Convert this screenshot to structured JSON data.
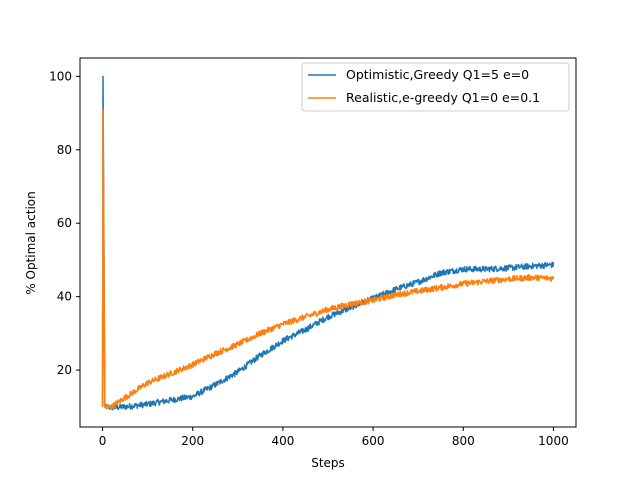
{
  "chart_data": {
    "type": "line",
    "title": "",
    "xlabel": "Steps",
    "ylabel": "% Optimal action",
    "xlim": [
      -50,
      1050
    ],
    "ylim": [
      4.5,
      105
    ],
    "xticks": [
      0,
      200,
      400,
      600,
      800,
      1000
    ],
    "yticks": [
      20,
      40,
      60,
      80,
      100
    ],
    "grid": false,
    "legend_position": "top-right",
    "series": [
      {
        "name": "Optimistic,Greedy Q1=5 e=0",
        "color": "#1f77b4",
        "x": [
          0,
          1,
          5,
          20,
          50,
          100,
          150,
          200,
          250,
          300,
          350,
          400,
          450,
          500,
          550,
          600,
          650,
          700,
          750,
          800,
          850,
          900,
          950,
          1000
        ],
        "y": [
          10,
          100,
          10,
          9.8,
          10,
          10.7,
          11.8,
          12.8,
          16,
          19.5,
          24,
          28,
          31,
          34.5,
          37,
          39.5,
          42,
          44,
          46.5,
          47.5,
          47.5,
          47.8,
          48.3,
          48.7
        ]
      },
      {
        "name": "Realistic,e-greedy Q1=0 e=0.1",
        "color": "#ff7f0e",
        "x": [
          0,
          1,
          5,
          20,
          50,
          100,
          150,
          200,
          250,
          300,
          350,
          400,
          450,
          500,
          550,
          600,
          650,
          700,
          750,
          800,
          850,
          900,
          950,
          1000
        ],
        "y": [
          10,
          91,
          10,
          10,
          12.5,
          16.5,
          19,
          21.5,
          24.5,
          27,
          30,
          32.5,
          34.5,
          36.5,
          38,
          39,
          40.5,
          41.5,
          42.5,
          43.5,
          44.2,
          44.8,
          45.2,
          45
        ]
      }
    ]
  }
}
